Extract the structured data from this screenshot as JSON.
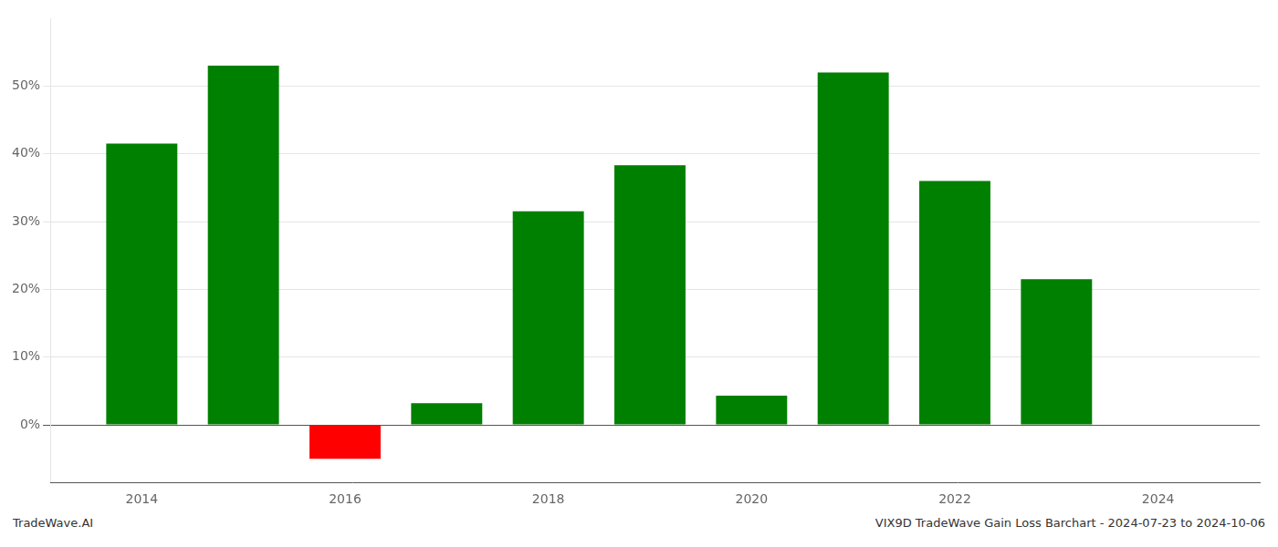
{
  "chart_data": {
    "type": "bar",
    "x": [
      2014,
      2015,
      2016,
      2017,
      2018,
      2019,
      2020,
      2021,
      2022,
      2023
    ],
    "values": [
      0.415,
      0.53,
      -0.05,
      0.032,
      0.315,
      0.383,
      0.043,
      0.52,
      0.36,
      0.215
    ],
    "colors": [
      "#008000",
      "#008000",
      "#ff0000",
      "#008000",
      "#008000",
      "#008000",
      "#008000",
      "#008000",
      "#008000",
      "#008000"
    ],
    "xlim": [
      2013.1,
      2025.0
    ],
    "xticks": [
      2014,
      2016,
      2018,
      2020,
      2022,
      2024
    ],
    "ylim": [
      -0.085,
      0.6
    ],
    "yticks": [
      {
        "value": 0.0,
        "label": "0%"
      },
      {
        "value": 0.1,
        "label": "10%"
      },
      {
        "value": 0.2,
        "label": "20%"
      },
      {
        "value": 0.3,
        "label": "30%"
      },
      {
        "value": 0.4,
        "label": "40%"
      },
      {
        "value": 0.5,
        "label": "50%"
      }
    ],
    "grid": "y",
    "annotations": [
      "TradeWave.AI",
      "VIX9D TradeWave Gain Loss Barchart - 2024-07-23 to 2024-10-06"
    ]
  }
}
